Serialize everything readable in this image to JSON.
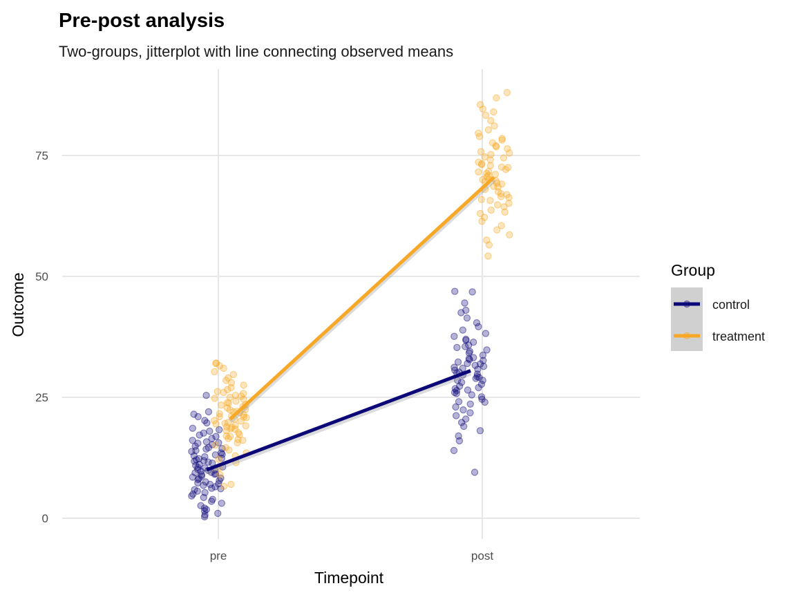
{
  "chart_data": {
    "type": "scatter",
    "title": "Pre-post analysis",
    "subtitle": "Two-groups, jitterplot with line connecting observed means",
    "xlabel": "Timepoint",
    "ylabel": "Outcome",
    "categories": [
      "pre",
      "post"
    ],
    "y_ticks": [
      0,
      25,
      50,
      75
    ],
    "ylim": [
      -3,
      91
    ],
    "grid": true,
    "legend": {
      "title": "Group",
      "position": "right"
    },
    "series": [
      {
        "name": "control",
        "color": "#0d0877",
        "means": [
          10,
          30.5
        ],
        "points": {
          "pre": [
            25.4,
            22.0,
            21.5,
            21.0,
            20.2,
            19.7,
            18.6,
            18.3,
            18.0,
            17.6,
            17.2,
            16.9,
            16.5,
            16.1,
            15.8,
            15.5,
            15.2,
            14.9,
            14.6,
            14.3,
            14.0,
            13.8,
            13.5,
            13.2,
            12.9,
            12.7,
            12.4,
            12.1,
            11.9,
            11.6,
            11.4,
            11.1,
            10.9,
            10.6,
            10.4,
            10.1,
            9.9,
            9.7,
            9.4,
            9.2,
            9.0,
            8.7,
            8.5,
            8.3,
            8.0,
            7.8,
            7.5,
            7.3,
            7.0,
            6.8,
            6.5,
            6.2,
            5.9,
            5.6,
            5.3,
            5.0,
            4.6,
            4.3,
            3.9,
            3.5,
            3.1,
            2.6,
            2.1,
            1.8,
            1.5,
            1.0,
            0.7,
            0.3,
            12.3,
            10.5,
            9.1,
            11.8,
            8.2,
            13.1,
            7.1,
            14.4,
            6.1,
            15.6,
            10.0,
            9.5
          ],
          "post": [
            46.8,
            46.9,
            44.5,
            43.0,
            42.5,
            41.4,
            40.4,
            39.6,
            38.9,
            38.2,
            37.6,
            37.0,
            36.4,
            35.8,
            35.3,
            34.8,
            34.2,
            33.7,
            33.2,
            32.8,
            32.3,
            31.9,
            31.4,
            31.0,
            30.6,
            30.2,
            29.8,
            29.3,
            28.9,
            28.5,
            28.1,
            27.7,
            27.3,
            26.8,
            26.4,
            26.0,
            25.5,
            25.1,
            24.6,
            24.1,
            23.6,
            23.0,
            22.4,
            21.8,
            21.2,
            20.5,
            19.8,
            19.0,
            18.1,
            17.0,
            16.0,
            14.0,
            9.5,
            30.0,
            32.0,
            28.5,
            34.5,
            26.5,
            31.2,
            29.1,
            33.0,
            27.0,
            35.5,
            24.0,
            30.8,
            31.6,
            29.6,
            36.8,
            25.8,
            32.6
          ]
        }
      },
      {
        "name": "treatment",
        "color": "#f7a826",
        "means": [
          20.5,
          70.5
        ],
        "points": {
          "pre": [
            32.1,
            32.0,
            31.5,
            31.0,
            30.3,
            29.7,
            29.0,
            28.5,
            28.0,
            27.5,
            27.0,
            26.6,
            26.2,
            25.8,
            25.4,
            25.0,
            24.6,
            24.2,
            23.8,
            23.5,
            23.1,
            22.8,
            22.4,
            22.1,
            21.8,
            21.4,
            21.1,
            20.8,
            20.5,
            20.1,
            19.8,
            19.5,
            19.1,
            18.8,
            18.4,
            18.1,
            17.7,
            17.3,
            16.9,
            16.5,
            16.1,
            15.6,
            15.1,
            14.6,
            14.1,
            13.5,
            12.9,
            12.2,
            11.5,
            10.4,
            9.0,
            7.0,
            6.6,
            20.2,
            22.5,
            18.5,
            24.8,
            17.0,
            21.6,
            19.2,
            23.4,
            16.3,
            26.0,
            20.9,
            22.0,
            18.9,
            25.2,
            21.0,
            19.6,
            23.9
          ],
          "post": [
            88.0,
            86.9,
            85.5,
            84.6,
            84.0,
            83.3,
            82.2,
            81.1,
            80.3,
            79.6,
            78.9,
            78.2,
            77.6,
            77.0,
            76.4,
            75.8,
            75.2,
            74.7,
            74.1,
            73.6,
            73.1,
            72.6,
            72.1,
            71.6,
            71.1,
            70.6,
            70.1,
            69.6,
            69.1,
            68.6,
            68.0,
            67.5,
            66.9,
            66.3,
            65.7,
            65.1,
            64.4,
            63.7,
            63.0,
            62.2,
            61.4,
            60.5,
            59.6,
            58.6,
            57.5,
            56.5,
            54.2,
            70.0,
            72.5,
            68.5,
            74.5,
            66.5,
            71.3,
            69.3,
            73.3,
            67.1,
            75.5,
            64.8,
            70.9,
            71.7,
            69.8,
            76.8,
            65.9,
            72.9,
            63.3,
            78.5
          ]
        }
      }
    ]
  }
}
